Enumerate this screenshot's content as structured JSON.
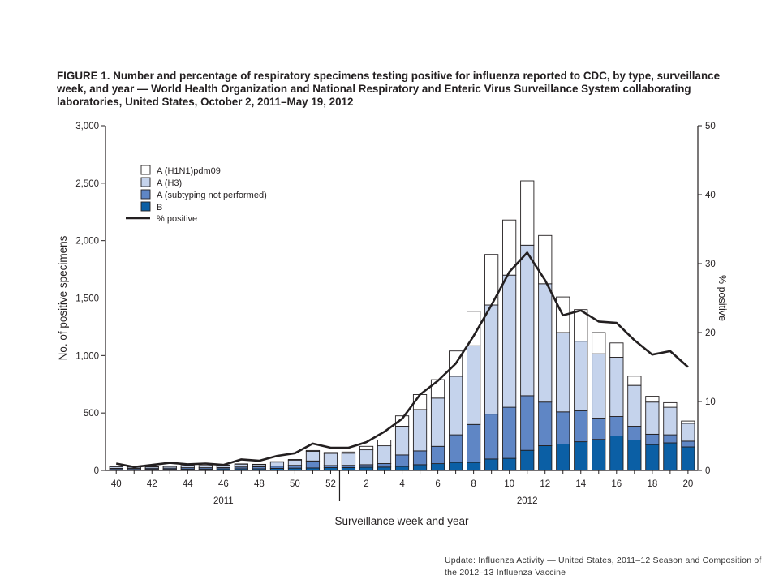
{
  "figure": {
    "title": "FIGURE 1. Number and percentage of respiratory specimens testing positive for influenza reported to CDC, by type, surveillance week, and year — World Health Organization and National Respiratory and Enteric Virus Surveillance System collaborating laboratories, United States, October 2, 2011–May 19, 2012",
    "caption": "Update: Influenza Activity — United States, 2011–12 Season and Composition of the 2012–13 Influenza Vaccine"
  },
  "chart_data": {
    "type": "bar",
    "stacked": true,
    "xlabel": "Surveillance week and year",
    "ylabel": "No. of positive specimens",
    "y2label": "% positive",
    "ylim": [
      0,
      3000
    ],
    "y2lim": [
      0,
      50
    ],
    "yticks": [
      "0",
      "500",
      "1,000",
      "1,500",
      "2,000",
      "2,500",
      "3,000"
    ],
    "y2ticks": [
      "0",
      "10",
      "20",
      "30",
      "40",
      "50"
    ],
    "xtick_labels": [
      "40",
      "42",
      "44",
      "46",
      "48",
      "50",
      "52",
      "2",
      "4",
      "6",
      "8",
      "10",
      "12",
      "14",
      "16",
      "18",
      "20"
    ],
    "years": [
      "2011",
      "2012"
    ],
    "legend_position": "top-left",
    "categories": [
      "40",
      "41",
      "42",
      "43",
      "44",
      "45",
      "46",
      "47",
      "48",
      "49",
      "50",
      "51",
      "52",
      "1",
      "2",
      "3",
      "4",
      "5",
      "6",
      "7",
      "8",
      "9",
      "10",
      "11",
      "12",
      "13",
      "14",
      "15",
      "16",
      "17",
      "18",
      "19",
      "20"
    ],
    "series": [
      {
        "name": "B",
        "color": "#0b5fa5",
        "values": [
          8,
          8,
          10,
          10,
          12,
          12,
          14,
          15,
          15,
          18,
          20,
          22,
          25,
          25,
          28,
          30,
          35,
          50,
          60,
          70,
          70,
          100,
          105,
          175,
          215,
          230,
          250,
          270,
          300,
          265,
          225,
          240,
          205
        ]
      },
      {
        "name": "A (subtyping not performed)",
        "color": "#5f86c5",
        "values": [
          10,
          10,
          10,
          10,
          12,
          12,
          12,
          15,
          17,
          20,
          25,
          60,
          18,
          20,
          22,
          30,
          100,
          120,
          150,
          240,
          330,
          390,
          445,
          475,
          380,
          280,
          270,
          185,
          170,
          120,
          90,
          70,
          50
        ]
      },
      {
        "name": "A (H3)",
        "color": "#c5d3ec",
        "values": [
          15,
          12,
          12,
          15,
          18,
          18,
          18,
          25,
          20,
          35,
          45,
          85,
          105,
          105,
          130,
          155,
          250,
          360,
          420,
          510,
          685,
          950,
          1150,
          1310,
          1030,
          690,
          605,
          560,
          515,
          355,
          280,
          240,
          155
        ]
      },
      {
        "name": "A (H1N1)pdm09",
        "color": "#ffffff",
        "values": [
          2,
          2,
          2,
          2,
          2,
          2,
          2,
          2,
          2,
          3,
          5,
          7,
          8,
          10,
          30,
          50,
          90,
          130,
          160,
          220,
          300,
          440,
          480,
          560,
          420,
          310,
          275,
          185,
          125,
          80,
          50,
          40,
          20
        ]
      }
    ],
    "line": {
      "name": "% positive",
      "values": [
        1,
        0.5,
        0.8,
        1.1,
        0.9,
        1.0,
        0.8,
        1.6,
        1.4,
        2.1,
        2.5,
        3.9,
        3.3,
        3.3,
        4.1,
        5.6,
        7.5,
        11,
        13,
        15.5,
        19.5,
        24,
        28.8,
        31.6,
        27.6,
        22.5,
        23.2,
        21.6,
        21.4,
        18.9,
        16.8,
        17.3,
        15
      ]
    }
  }
}
